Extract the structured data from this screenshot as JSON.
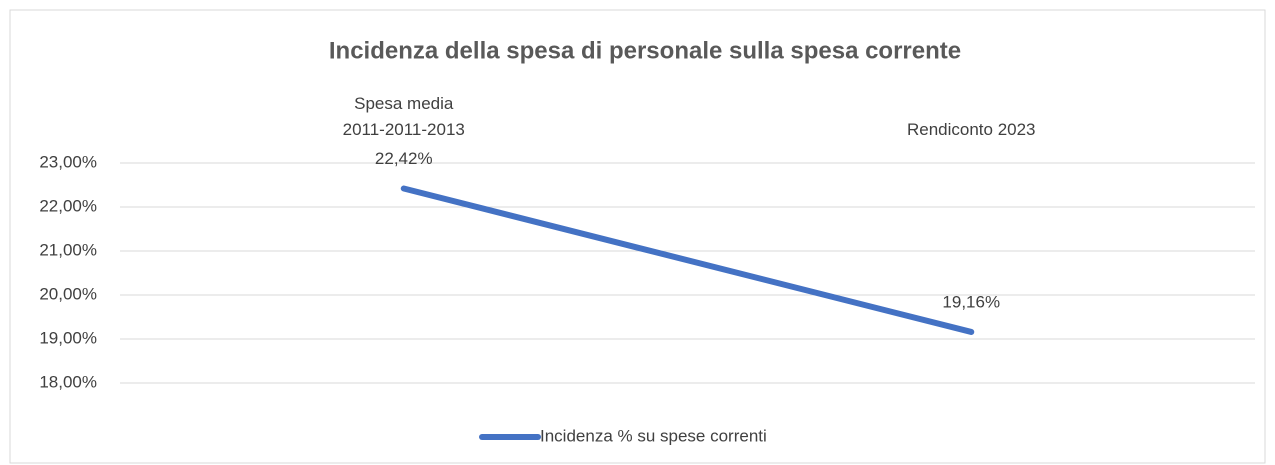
{
  "chart_data": {
    "type": "line",
    "title": "Incidenza della spesa di personale sulla spesa corrente",
    "categories": [
      "Spesa media\n2011-2011-2013",
      "Rendiconto 2023"
    ],
    "series": [
      {
        "name": "Incidenza % su spese correnti",
        "color": "#4472c4",
        "values": [
          22.42,
          19.16
        ],
        "value_labels": [
          "22,42%",
          "19,16%"
        ]
      }
    ],
    "ylim": [
      18,
      23
    ],
    "yticks": [
      {
        "value": 18,
        "label": "18,00%"
      },
      {
        "value": 19,
        "label": "19,00%"
      },
      {
        "value": 20,
        "label": "20,00%"
      },
      {
        "value": 21,
        "label": "21,00%"
      },
      {
        "value": 22,
        "label": "22,00%"
      },
      {
        "value": 23,
        "label": "23,00%"
      }
    ],
    "grid": true,
    "legend": "bottom"
  }
}
